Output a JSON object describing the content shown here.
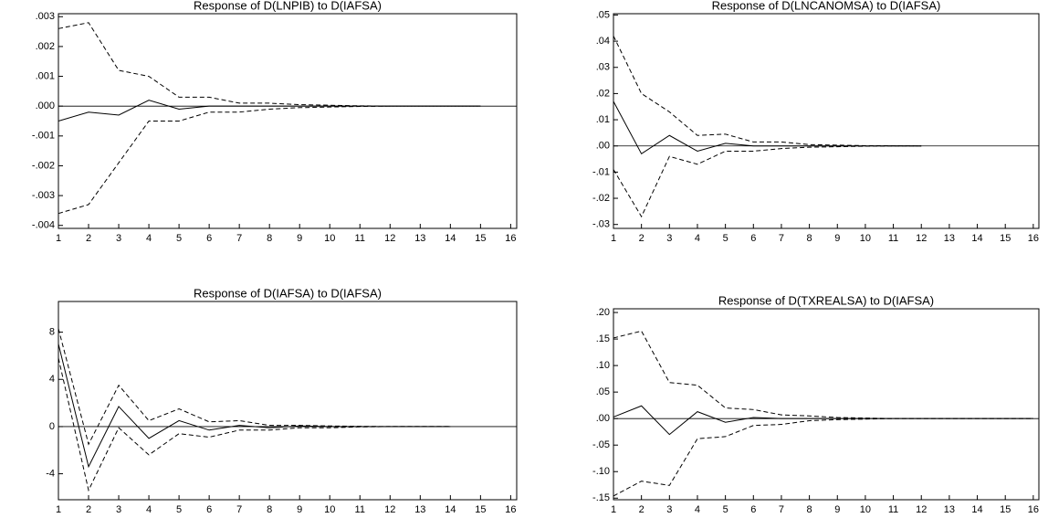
{
  "chart_data": [
    {
      "type": "line",
      "title": "Response of D(LNPIB) to D(IAFSA)",
      "x": [
        1,
        2,
        3,
        4,
        5,
        6,
        7,
        8,
        9,
        10,
        11,
        12,
        13,
        14,
        15,
        16
      ],
      "xlim": [
        1,
        16.2
      ],
      "xticks": [
        1,
        2,
        3,
        4,
        5,
        6,
        7,
        8,
        9,
        10,
        11,
        12,
        13,
        14,
        15,
        16
      ],
      "ylim": [
        -0.0041,
        0.0031
      ],
      "yticks": [
        {
          "value": 0.003,
          "label": ".003"
        },
        {
          "value": 0.002,
          "label": ".002"
        },
        {
          "value": 0.001,
          "label": ".001"
        },
        {
          "value": 0,
          "label": ".000"
        },
        {
          "value": -0.001,
          "label": "-.001"
        },
        {
          "value": -0.002,
          "label": "-.002"
        },
        {
          "value": -0.003,
          "label": "-.003"
        },
        {
          "value": -0.004,
          "label": "-.004"
        }
      ],
      "series": [
        {
          "color": "#000000",
          "dash": false,
          "values": [
            -0.0005,
            -0.0002,
            -0.0003,
            0.0002,
            -0.0001,
            0,
            0,
            0,
            0,
            0,
            0,
            0,
            0,
            0,
            0,
            null
          ]
        },
        {
          "color": "#000000",
          "dash": true,
          "values": [
            0.0026,
            0.0028,
            0.0012,
            0.001,
            0.0003,
            0.0003,
            0.0001,
            0.0001,
            5e-05,
            3e-05,
            1e-05,
            0,
            0,
            0,
            0,
            null
          ]
        },
        {
          "color": "#000000",
          "dash": true,
          "values": [
            -0.0036,
            -0.0033,
            -0.0019,
            -0.0005,
            -0.0005,
            -0.0002,
            -0.0002,
            -0.0001,
            -5e-05,
            -3e-05,
            -1e-05,
            0,
            0,
            0,
            0,
            null
          ]
        }
      ]
    },
    {
      "type": "line",
      "title": "Response of D(LNCANOMSA) to D(IAFSA)",
      "x": [
        1,
        2,
        3,
        4,
        5,
        6,
        7,
        8,
        9,
        10,
        11,
        12,
        13,
        14,
        15,
        16
      ],
      "xlim": [
        1,
        16.2
      ],
      "xticks": [
        1,
        2,
        3,
        4,
        5,
        6,
        7,
        8,
        9,
        10,
        11,
        12,
        13,
        14,
        15,
        16
      ],
      "ylim": [
        -0.0315,
        0.0505
      ],
      "yticks": [
        {
          "value": 0.05,
          "label": ".05"
        },
        {
          "value": 0.04,
          "label": ".04"
        },
        {
          "value": 0.03,
          "label": ".03"
        },
        {
          "value": 0.02,
          "label": ".02"
        },
        {
          "value": 0.01,
          "label": ".01"
        },
        {
          "value": 0,
          "label": ".00"
        },
        {
          "value": -0.01,
          "label": "-.01"
        },
        {
          "value": -0.02,
          "label": "-.02"
        },
        {
          "value": -0.03,
          "label": "-.03"
        }
      ],
      "series": [
        {
          "color": "#000000",
          "dash": false,
          "values": [
            0.017,
            -0.003,
            0.004,
            -0.002,
            0.001,
            0,
            0,
            0,
            0,
            0,
            0,
            0,
            null,
            null,
            null,
            null
          ]
        },
        {
          "color": "#000000",
          "dash": true,
          "values": [
            0.042,
            0.02,
            0.013,
            0.004,
            0.0045,
            0.0015,
            0.0015,
            0.0005,
            0.0003,
            0.0001,
            5e-05,
            0,
            null,
            null,
            null,
            null
          ]
        },
        {
          "color": "#000000",
          "dash": true,
          "values": [
            -0.009,
            -0.027,
            -0.004,
            -0.007,
            -0.002,
            -0.002,
            -0.001,
            -0.0005,
            -0.0003,
            -0.0001,
            0,
            0,
            null,
            null,
            null,
            null
          ]
        }
      ]
    },
    {
      "type": "line",
      "title": "Response of D(IAFSA) to D(IAFSA)",
      "x": [
        1,
        2,
        3,
        4,
        5,
        6,
        7,
        8,
        9,
        10,
        11,
        12,
        13,
        14,
        15,
        16
      ],
      "xlim": [
        1,
        16.2
      ],
      "xticks": [
        1,
        2,
        3,
        4,
        5,
        6,
        7,
        8,
        9,
        10,
        11,
        12,
        13,
        14,
        15,
        16
      ],
      "ylim": [
        -6.2,
        10.6
      ],
      "yticks": [
        8,
        4,
        0,
        -4
      ],
      "series": [
        {
          "color": "#000000",
          "dash": false,
          "values": [
            7.0,
            -3.4,
            1.7,
            -1.0,
            0.5,
            -0.3,
            0.1,
            -0.1,
            0.05,
            0,
            0,
            0,
            0,
            0,
            null,
            null
          ]
        },
        {
          "color": "#000000",
          "dash": true,
          "values": [
            8.3,
            -1.5,
            3.5,
            0.5,
            1.5,
            0.4,
            0.5,
            0.1,
            0.1,
            0.05,
            0.02,
            0,
            0,
            0,
            null,
            null
          ]
        },
        {
          "color": "#000000",
          "dash": true,
          "values": [
            5.8,
            -5.4,
            -0.1,
            -2.4,
            -0.6,
            -0.9,
            -0.3,
            -0.3,
            -0.1,
            -0.1,
            -0.03,
            0,
            0,
            0,
            null,
            null
          ]
        }
      ]
    },
    {
      "type": "line",
      "title": "Response of D(TXREALSA) to D(IAFSA)",
      "x": [
        1,
        2,
        3,
        4,
        5,
        6,
        7,
        8,
        9,
        10,
        11,
        12,
        13,
        14,
        15,
        16
      ],
      "xlim": [
        1,
        16.2
      ],
      "xticks": [
        1,
        2,
        3,
        4,
        5,
        6,
        7,
        8,
        9,
        10,
        11,
        12,
        13,
        14,
        15,
        16
      ],
      "ylim": [
        -0.153,
        0.207
      ],
      "yticks": [
        {
          "value": 0.2,
          "label": ".20"
        },
        {
          "value": 0.15,
          "label": ".15"
        },
        {
          "value": 0.1,
          "label": ".10"
        },
        {
          "value": 0.05,
          "label": ".05"
        },
        {
          "value": 0,
          "label": ".00"
        },
        {
          "value": -0.05,
          "label": "-.05"
        },
        {
          "value": -0.1,
          "label": "-.10"
        },
        {
          "value": -0.15,
          "label": "-.15"
        }
      ],
      "series": [
        {
          "color": "#000000",
          "dash": false,
          "values": [
            0.003,
            0.024,
            -0.03,
            0.013,
            -0.007,
            0.002,
            0,
            0,
            0,
            0,
            0,
            0,
            0,
            0,
            0,
            0
          ]
        },
        {
          "color": "#000000",
          "dash": true,
          "values": [
            0.152,
            0.165,
            0.068,
            0.063,
            0.02,
            0.017,
            0.007,
            0.005,
            0.002,
            0.001,
            0,
            0,
            0,
            0,
            0,
            0
          ]
        },
        {
          "color": "#000000",
          "dash": true,
          "values": [
            -0.146,
            -0.118,
            -0.126,
            -0.038,
            -0.034,
            -0.013,
            -0.011,
            -0.004,
            -0.002,
            -0.001,
            0,
            0,
            0,
            0,
            0,
            0
          ]
        }
      ]
    }
  ]
}
